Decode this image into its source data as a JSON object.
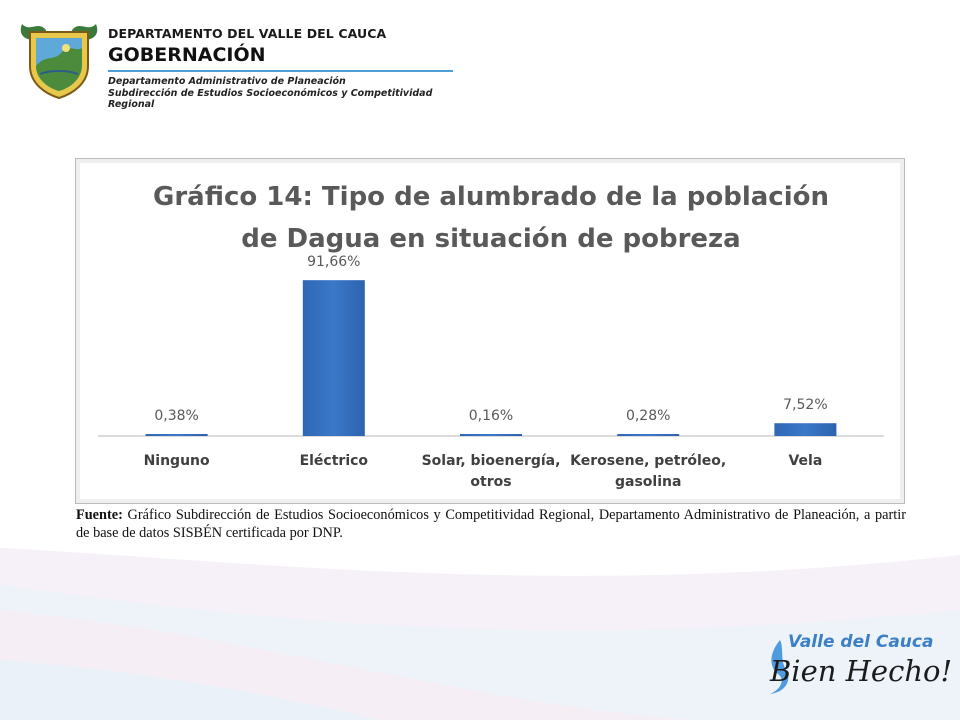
{
  "header": {
    "department": "DEPARTAMENTO DEL VALLE DEL CAUCA",
    "government": "GOBERNACIÓN",
    "office": "Departamento  Administrativo de Planeación",
    "suboffice": "Subdirección de Estudios Socioeconómicos y Competitividad Regional"
  },
  "chart_data": {
    "type": "bar",
    "title_line1": "Gráfico 14: Tipo de alumbrado de la población",
    "title_line2": "de Dagua en situación de pobreza",
    "categories": [
      [
        "Ninguno"
      ],
      [
        "Eléctrico"
      ],
      [
        "Solar, bioenergía,",
        "otros"
      ],
      [
        "Kerosene, petróleo,",
        "gasolina"
      ],
      [
        "Vela"
      ]
    ],
    "values": [
      0.38,
      91.66,
      0.16,
      0.28,
      7.52
    ],
    "data_labels": [
      "0,38%",
      "91,66%",
      "0,16%",
      "0,28%",
      "7,52%"
    ],
    "ylim": [
      0,
      100
    ],
    "bar_color": "#3a78c8"
  },
  "source": {
    "label": "Fuente:",
    "text": "Gráfico Subdirección de Estudios Socioeconómicos y Competitividad Regional, Departamento Administrativo de Planeación, a partir de base de datos SISBÉN certificada por DNP."
  },
  "brand": {
    "line1": "Valle del Cauca",
    "line2": "Bien Hecho!"
  }
}
